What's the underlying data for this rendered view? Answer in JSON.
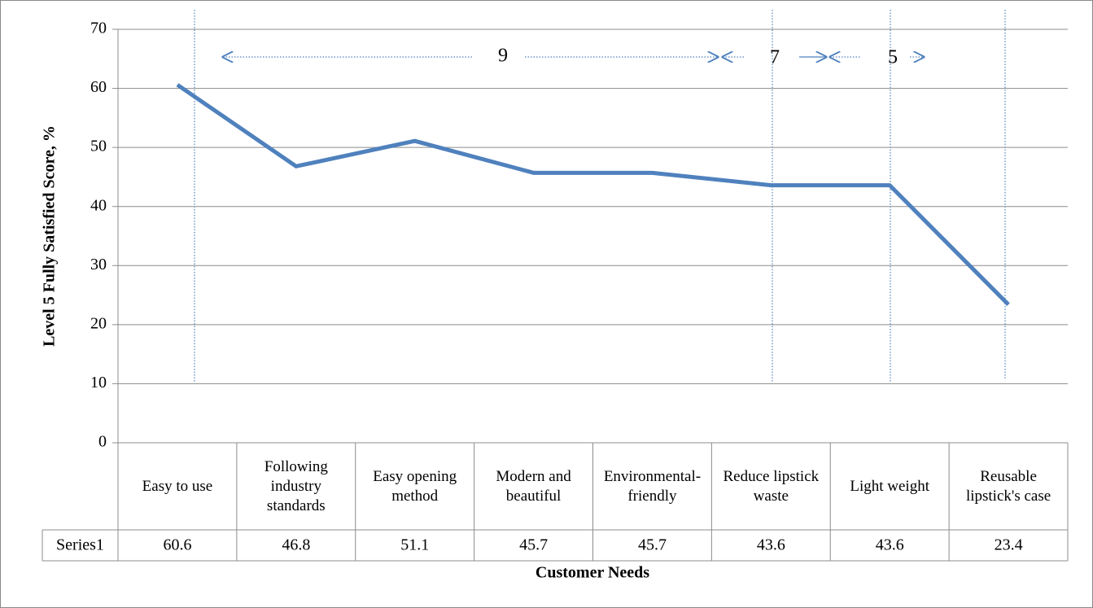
{
  "chart_data": {
    "type": "line",
    "categories": [
      "Easy to use",
      "Following industry standards",
      "Easy opening method",
      "Modern and beautiful",
      "Environmental-friendly",
      "Reduce lipstick waste",
      "Light weight",
      "Reusable lipstick's case"
    ],
    "series": [
      {
        "name": "Series1",
        "color": "#4f81bd",
        "values": [
          60.6,
          46.8,
          51.1,
          45.7,
          45.7,
          43.6,
          43.6,
          23.4
        ]
      }
    ],
    "ylim": [
      0,
      70
    ],
    "yticks": [
      0,
      10,
      20,
      30,
      40,
      50,
      60,
      70
    ],
    "grid": true,
    "y_label": "Level 5 Fully Satisfied Score, %",
    "x_label": "Customer Needs",
    "annotations": [
      "9",
      "7",
      "5"
    ]
  }
}
